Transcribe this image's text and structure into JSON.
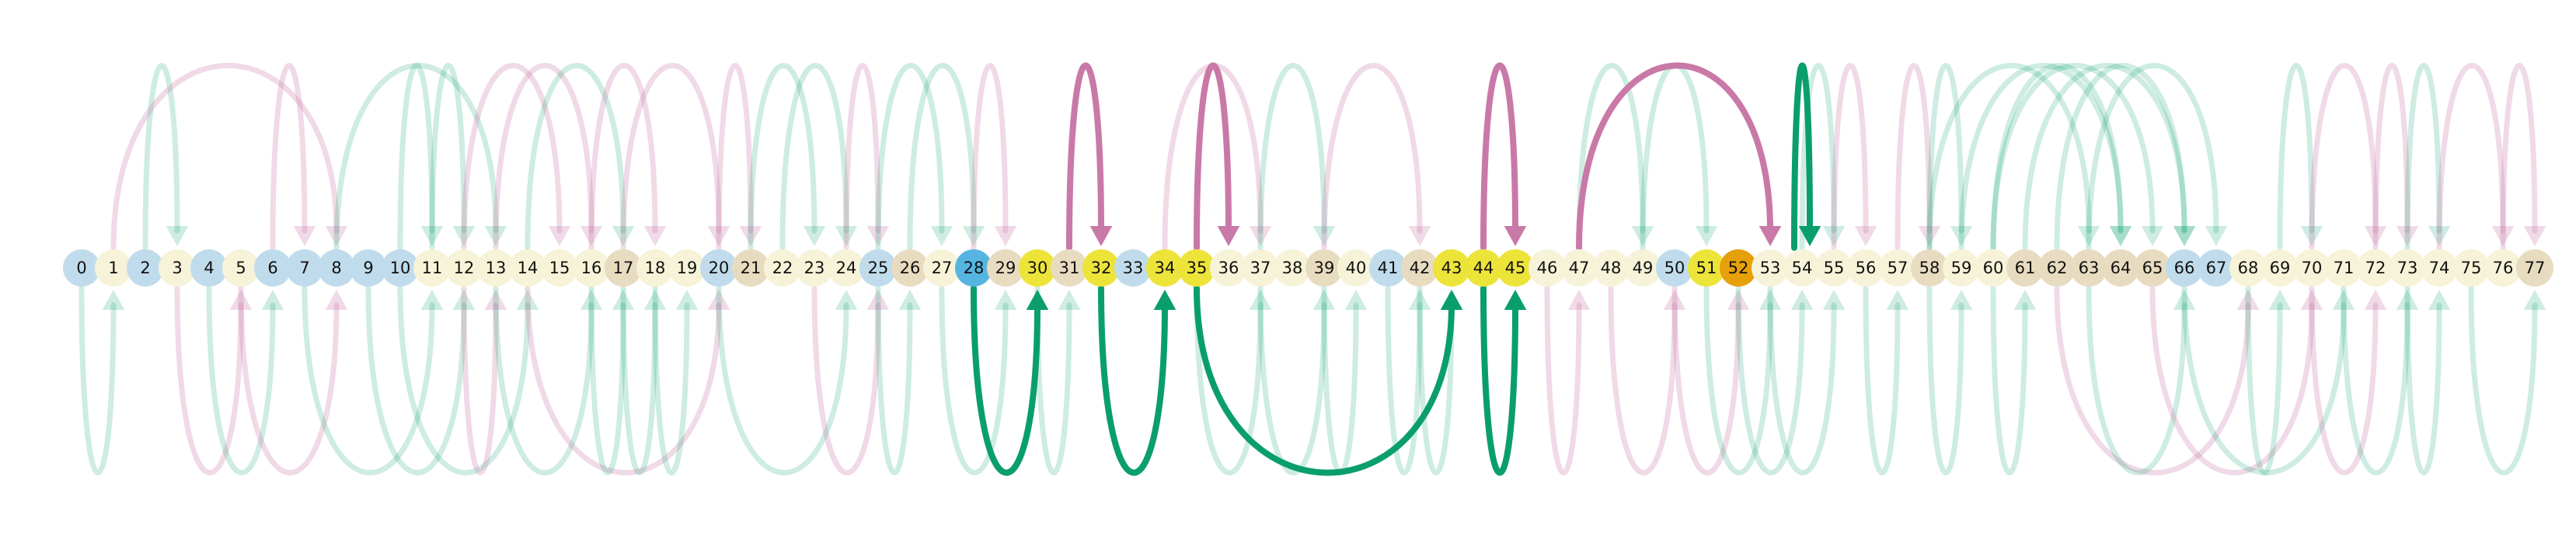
{
  "nodes": [
    {
      "label": "0",
      "color": "#c0dcec"
    },
    {
      "label": "1",
      "color": "#f6f3d9"
    },
    {
      "label": "2",
      "color": "#c0dcec"
    },
    {
      "label": "3",
      "color": "#f6f3d9"
    },
    {
      "label": "4",
      "color": "#c0dcec"
    },
    {
      "label": "5",
      "color": "#f6f3d9"
    },
    {
      "label": "6",
      "color": "#c0dcec"
    },
    {
      "label": "7",
      "color": "#c0dcec"
    },
    {
      "label": "8",
      "color": "#c0dcec"
    },
    {
      "label": "9",
      "color": "#c0dcec"
    },
    {
      "label": "10",
      "color": "#c0dcec"
    },
    {
      "label": "11",
      "color": "#f6f3d9"
    },
    {
      "label": "12",
      "color": "#f6f3d9"
    },
    {
      "label": "13",
      "color": "#f6f3d9"
    },
    {
      "label": "14",
      "color": "#f6f3d9"
    },
    {
      "label": "15",
      "color": "#f6f3d9"
    },
    {
      "label": "16",
      "color": "#f6f3d9"
    },
    {
      "label": "17",
      "color": "#e8dcc0"
    },
    {
      "label": "18",
      "color": "#f6f3d9"
    },
    {
      "label": "19",
      "color": "#f6f3d9"
    },
    {
      "label": "20",
      "color": "#c0dcec"
    },
    {
      "label": "21",
      "color": "#e8dcc0"
    },
    {
      "label": "22",
      "color": "#f6f3d9"
    },
    {
      "label": "23",
      "color": "#f6f3d9"
    },
    {
      "label": "24",
      "color": "#f6f3d9"
    },
    {
      "label": "25",
      "color": "#c0dcec"
    },
    {
      "label": "26",
      "color": "#e8dcc0"
    },
    {
      "label": "27",
      "color": "#f6f3d9"
    },
    {
      "label": "28",
      "color": "#56b4e0"
    },
    {
      "label": "29",
      "color": "#e8dcc0"
    },
    {
      "label": "30",
      "color": "#ede43a"
    },
    {
      "label": "31",
      "color": "#e8dcc0"
    },
    {
      "label": "32",
      "color": "#ede43a"
    },
    {
      "label": "33",
      "color": "#c0dcec"
    },
    {
      "label": "34",
      "color": "#ede43a"
    },
    {
      "label": "35",
      "color": "#ede43a"
    },
    {
      "label": "36",
      "color": "#f6f3d9"
    },
    {
      "label": "37",
      "color": "#f6f3d9"
    },
    {
      "label": "38",
      "color": "#f6f3d9"
    },
    {
      "label": "39",
      "color": "#e8dcc0"
    },
    {
      "label": "40",
      "color": "#f6f3d9"
    },
    {
      "label": "41",
      "color": "#c0dcec"
    },
    {
      "label": "42",
      "color": "#e8dcc0"
    },
    {
      "label": "43",
      "color": "#ede43a"
    },
    {
      "label": "44",
      "color": "#ede43a"
    },
    {
      "label": "45",
      "color": "#ede43a"
    },
    {
      "label": "46",
      "color": "#f6f3d9"
    },
    {
      "label": "47",
      "color": "#f6f3d9"
    },
    {
      "label": "48",
      "color": "#f6f3d9"
    },
    {
      "label": "49",
      "color": "#f6f3d9"
    },
    {
      "label": "50",
      "color": "#c0dcec"
    },
    {
      "label": "51",
      "color": "#ede43a"
    },
    {
      "label": "52",
      "color": "#e6a00a"
    },
    {
      "label": "53",
      "color": "#f6f3d9"
    },
    {
      "label": "54",
      "color": "#f6f3d9"
    },
    {
      "label": "55",
      "color": "#f6f3d9"
    },
    {
      "label": "56",
      "color": "#f6f3d9"
    },
    {
      "label": "57",
      "color": "#f6f3d9"
    },
    {
      "label": "58",
      "color": "#e8dcc0"
    },
    {
      "label": "59",
      "color": "#f6f3d9"
    },
    {
      "label": "60",
      "color": "#f6f3d9"
    },
    {
      "label": "61",
      "color": "#e8dcc0"
    },
    {
      "label": "62",
      "color": "#e8dcc0"
    },
    {
      "label": "63",
      "color": "#e8dcc0"
    },
    {
      "label": "64",
      "color": "#e8dcc0"
    },
    {
      "label": "65",
      "color": "#e8dcc0"
    },
    {
      "label": "66",
      "color": "#c0dcec"
    },
    {
      "label": "67",
      "color": "#c0dcec"
    },
    {
      "label": "68",
      "color": "#f6f3d9"
    },
    {
      "label": "69",
      "color": "#f6f3d9"
    },
    {
      "label": "70",
      "color": "#f6f3d9"
    },
    {
      "label": "71",
      "color": "#f6f3d9"
    },
    {
      "label": "72",
      "color": "#f6f3d9"
    },
    {
      "label": "73",
      "color": "#f6f3d9"
    },
    {
      "label": "74",
      "color": "#f6f3d9"
    },
    {
      "label": "75",
      "color": "#f6f3d9"
    },
    {
      "label": "76",
      "color": "#f6f3d9"
    },
    {
      "label": "77",
      "color": "#e8dcc0"
    }
  ],
  "edge_styles": {
    "pink": {
      "color": "#c979a8",
      "faded_opacity": 0.28
    },
    "green": {
      "color": "#0a9e6e",
      "faded_opacity": 0.2
    }
  },
  "edges": [
    {
      "from": 31,
      "to": 32,
      "side": "top",
      "style": "pink",
      "highlight": true
    },
    {
      "from": 35,
      "to": 36,
      "side": "top",
      "style": "pink",
      "highlight": true
    },
    {
      "from": 44,
      "to": 45,
      "side": "top",
      "style": "pink",
      "highlight": true
    },
    {
      "from": 47,
      "to": 53,
      "side": "top",
      "style": "pink",
      "highlight": true
    },
    {
      "from": 54,
      "to": 54,
      "side": "top",
      "style": "green",
      "highlight": true
    },
    {
      "from": 28,
      "to": 30,
      "side": "bottom",
      "style": "green",
      "highlight": true
    },
    {
      "from": 32,
      "to": 34,
      "side": "bottom",
      "style": "green",
      "highlight": true
    },
    {
      "from": 35,
      "to": 43,
      "side": "bottom",
      "style": "green",
      "highlight": true
    },
    {
      "from": 44,
      "to": 45,
      "side": "bottom",
      "style": "green",
      "highlight": true
    },
    {
      "from": 2,
      "to": 3,
      "side": "top",
      "style": "green"
    },
    {
      "from": 1,
      "to": 8,
      "side": "top",
      "style": "pink"
    },
    {
      "from": 6,
      "to": 7,
      "side": "top",
      "style": "pink"
    },
    {
      "from": 8,
      "to": 13,
      "side": "top",
      "style": "green"
    },
    {
      "from": 10,
      "to": 11,
      "side": "top",
      "style": "green"
    },
    {
      "from": 11,
      "to": 12,
      "side": "top",
      "style": "green"
    },
    {
      "from": 12,
      "to": 15,
      "side": "top",
      "style": "pink"
    },
    {
      "from": 13,
      "to": 16,
      "side": "top",
      "style": "pink"
    },
    {
      "from": 14,
      "to": 17,
      "side": "top",
      "style": "green"
    },
    {
      "from": 16,
      "to": 18,
      "side": "top",
      "style": "pink"
    },
    {
      "from": 17,
      "to": 20,
      "side": "top",
      "style": "pink"
    },
    {
      "from": 20,
      "to": 21,
      "side": "top",
      "style": "pink"
    },
    {
      "from": 21,
      "to": 23,
      "side": "top",
      "style": "green"
    },
    {
      "from": 22,
      "to": 24,
      "side": "top",
      "style": "green"
    },
    {
      "from": 24,
      "to": 25,
      "side": "top",
      "style": "pink"
    },
    {
      "from": 25,
      "to": 27,
      "side": "top",
      "style": "green"
    },
    {
      "from": 26,
      "to": 28,
      "side": "top",
      "style": "green"
    },
    {
      "from": 28,
      "to": 29,
      "side": "top",
      "style": "pink"
    },
    {
      "from": 34,
      "to": 37,
      "side": "top",
      "style": "pink"
    },
    {
      "from": 37,
      "to": 39,
      "side": "top",
      "style": "green"
    },
    {
      "from": 39,
      "to": 42,
      "side": "top",
      "style": "pink"
    },
    {
      "from": 47,
      "to": 49,
      "side": "top",
      "style": "green"
    },
    {
      "from": 49,
      "to": 51,
      "side": "top",
      "style": "green"
    },
    {
      "from": 54,
      "to": 55,
      "side": "top",
      "style": "green"
    },
    {
      "from": 55,
      "to": 56,
      "side": "top",
      "style": "pink"
    },
    {
      "from": 57,
      "to": 58,
      "side": "top",
      "style": "pink"
    },
    {
      "from": 58,
      "to": 59,
      "side": "top",
      "style": "green"
    },
    {
      "from": 58,
      "to": 63,
      "side": "top",
      "style": "green"
    },
    {
      "from": 59,
      "to": 64,
      "side": "top",
      "style": "green"
    },
    {
      "from": 60,
      "to": 64,
      "side": "top",
      "style": "green"
    },
    {
      "from": 60,
      "to": 65,
      "side": "top",
      "style": "green"
    },
    {
      "from": 61,
      "to": 66,
      "side": "top",
      "style": "green"
    },
    {
      "from": 62,
      "to": 66,
      "side": "top",
      "style": "green"
    },
    {
      "from": 63,
      "to": 67,
      "side": "top",
      "style": "green"
    },
    {
      "from": 69,
      "to": 70,
      "side": "top",
      "style": "green"
    },
    {
      "from": 70,
      "to": 72,
      "side": "top",
      "style": "pink"
    },
    {
      "from": 72,
      "to": 73,
      "side": "top",
      "style": "pink"
    },
    {
      "from": 73,
      "to": 74,
      "side": "top",
      "style": "green"
    },
    {
      "from": 74,
      "to": 76,
      "side": "top",
      "style": "pink"
    },
    {
      "from": 76,
      "to": 77,
      "side": "top",
      "style": "pink"
    },
    {
      "from": 0,
      "to": 1,
      "side": "bottom",
      "style": "green"
    },
    {
      "from": 3,
      "to": 5,
      "side": "bottom",
      "style": "pink"
    },
    {
      "from": 4,
      "to": 6,
      "side": "bottom",
      "style": "green"
    },
    {
      "from": 5,
      "to": 8,
      "side": "bottom",
      "style": "pink"
    },
    {
      "from": 7,
      "to": 11,
      "side": "bottom",
      "style": "green"
    },
    {
      "from": 9,
      "to": 12,
      "side": "bottom",
      "style": "green"
    },
    {
      "from": 10,
      "to": 14,
      "side": "bottom",
      "style": "green"
    },
    {
      "from": 12,
      "to": 13,
      "side": "bottom",
      "style": "pink"
    },
    {
      "from": 13,
      "to": 16,
      "side": "bottom",
      "style": "green"
    },
    {
      "from": 14,
      "to": 20,
      "side": "bottom",
      "style": "pink"
    },
    {
      "from": 16,
      "to": 17,
      "side": "bottom",
      "style": "green"
    },
    {
      "from": 17,
      "to": 18,
      "side": "bottom",
      "style": "green"
    },
    {
      "from": 18,
      "to": 19,
      "side": "bottom",
      "style": "green"
    },
    {
      "from": 20,
      "to": 24,
      "side": "bottom",
      "style": "green"
    },
    {
      "from": 23,
      "to": 25,
      "side": "bottom",
      "style": "pink"
    },
    {
      "from": 25,
      "to": 26,
      "side": "bottom",
      "style": "green"
    },
    {
      "from": 27,
      "to": 29,
      "side": "bottom",
      "style": "green"
    },
    {
      "from": 30,
      "to": 31,
      "side": "bottom",
      "style": "green"
    },
    {
      "from": 35,
      "to": 37,
      "side": "bottom",
      "style": "green"
    },
    {
      "from": 37,
      "to": 39,
      "side": "bottom",
      "style": "green"
    },
    {
      "from": 39,
      "to": 40,
      "side": "bottom",
      "style": "green"
    },
    {
      "from": 41,
      "to": 42,
      "side": "bottom",
      "style": "green"
    },
    {
      "from": 42,
      "to": 43,
      "side": "bottom",
      "style": "green"
    },
    {
      "from": 46,
      "to": 47,
      "side": "bottom",
      "style": "pink"
    },
    {
      "from": 48,
      "to": 50,
      "side": "bottom",
      "style": "pink"
    },
    {
      "from": 50,
      "to": 52,
      "side": "bottom",
      "style": "pink"
    },
    {
      "from": 51,
      "to": 53,
      "side": "bottom",
      "style": "green"
    },
    {
      "from": 52,
      "to": 54,
      "side": "bottom",
      "style": "green"
    },
    {
      "from": 53,
      "to": 55,
      "side": "bottom",
      "style": "green"
    },
    {
      "from": 56,
      "to": 57,
      "side": "bottom",
      "style": "green"
    },
    {
      "from": 58,
      "to": 59,
      "side": "bottom",
      "style": "green"
    },
    {
      "from": 60,
      "to": 61,
      "side": "bottom",
      "style": "green"
    },
    {
      "from": 62,
      "to": 68,
      "side": "bottom",
      "style": "pink"
    },
    {
      "from": 63,
      "to": 66,
      "side": "bottom",
      "style": "green"
    },
    {
      "from": 65,
      "to": 70,
      "side": "bottom",
      "style": "pink"
    },
    {
      "from": 66,
      "to": 71,
      "side": "bottom",
      "style": "green"
    },
    {
      "from": 68,
      "to": 69,
      "side": "bottom",
      "style": "green"
    },
    {
      "from": 70,
      "to": 72,
      "side": "bottom",
      "style": "pink"
    },
    {
      "from": 71,
      "to": 73,
      "side": "bottom",
      "style": "green"
    },
    {
      "from": 73,
      "to": 74,
      "side": "bottom",
      "style": "green"
    },
    {
      "from": 75,
      "to": 77,
      "side": "bottom",
      "style": "green"
    }
  ]
}
